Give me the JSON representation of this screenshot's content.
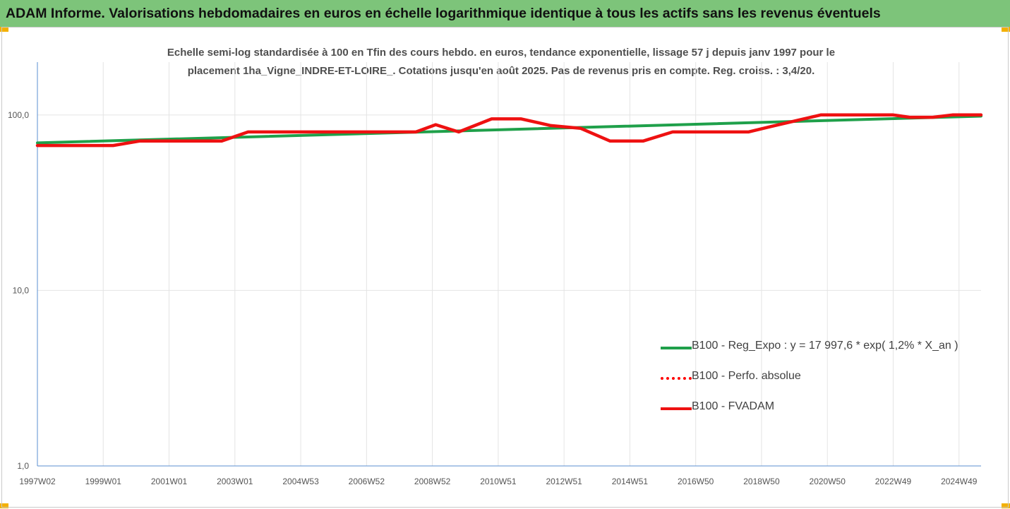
{
  "banner": {
    "title": "ADAM Informe. Valorisations hebdomadaires en euros en échelle logarithmique identique à tous les actifs sans les revenus éventuels",
    "background": "#7dc47a",
    "corner_color": "#f3b000"
  },
  "chart_data": {
    "type": "line",
    "title_lines": [
      "Echelle semi-log standardisée à 100 en Tfin des cours hebdo. en euros, tendance exponentielle, lissage 57 j depuis janv 1997 pour le",
      "placement 1ha_Vigne_INDRE-ET-LOIRE_. Cotations jusqu'en août 2025. Pas de revenus pris en compte. Reg. croiss. : 3,4/20."
    ],
    "y_scale": "log",
    "ylim": [
      1,
      200
    ],
    "y_ticks": [
      {
        "value": 1,
        "label": "1,0"
      },
      {
        "value": 10,
        "label": "10,0"
      },
      {
        "value": 100,
        "label": "100,0"
      }
    ],
    "xlim": [
      1997.0,
      2025.67
    ],
    "x_ticks": [
      {
        "value": 1997.0,
        "label": "1997W02"
      },
      {
        "value": 1999.0,
        "label": "1999W01"
      },
      {
        "value": 2001.0,
        "label": "2001W01"
      },
      {
        "value": 2003.0,
        "label": "2003W01"
      },
      {
        "value": 2005.0,
        "label": "2004W53"
      },
      {
        "value": 2007.0,
        "label": "2006W52"
      },
      {
        "value": 2009.0,
        "label": "2008W52"
      },
      {
        "value": 2011.0,
        "label": "2010W51"
      },
      {
        "value": 2013.0,
        "label": "2012W51"
      },
      {
        "value": 2015.0,
        "label": "2014W51"
      },
      {
        "value": 2017.0,
        "label": "2016W50"
      },
      {
        "value": 2019.0,
        "label": "2018W50"
      },
      {
        "value": 2021.0,
        "label": "2020W50"
      },
      {
        "value": 2023.0,
        "label": "2022W49"
      },
      {
        "value": 2025.0,
        "label": "2024W49"
      }
    ],
    "grid": "vertical",
    "legend_position": "bottom-right",
    "series": [
      {
        "name": "B100 - Reg_Expo : y = 17 997,6 * exp( 1,2% *  X_an )",
        "color": "#1fa04a",
        "style": "solid",
        "points": [
          [
            1997.0,
            69.3
          ],
          [
            2025.67,
            98.5
          ]
        ]
      },
      {
        "name": "B100 - Perfo. absolue",
        "color": "#ff0000",
        "style": "dotted",
        "points": []
      },
      {
        "name": "B100 - FVADAM",
        "color": "#ee1111",
        "style": "solid",
        "points": [
          [
            1997.0,
            67.0
          ],
          [
            1999.0,
            67.0
          ],
          [
            1999.3,
            67.0
          ],
          [
            2000.1,
            71.0
          ],
          [
            2002.6,
            71.0
          ],
          [
            2003.4,
            80.0
          ],
          [
            2008.5,
            80.0
          ],
          [
            2009.1,
            88.0
          ],
          [
            2009.8,
            80.0
          ],
          [
            2010.8,
            95.0
          ],
          [
            2011.7,
            95.0
          ],
          [
            2012.6,
            87.0
          ],
          [
            2013.5,
            84.0
          ],
          [
            2014.4,
            71.0
          ],
          [
            2015.4,
            71.0
          ],
          [
            2016.3,
            80.0
          ],
          [
            2018.6,
            80.0
          ],
          [
            2019.3,
            86.0
          ],
          [
            2020.8,
            100.0
          ],
          [
            2023.0,
            100.0
          ],
          [
            2023.5,
            97.0
          ],
          [
            2024.2,
            97.0
          ],
          [
            2024.8,
            100.0
          ],
          [
            2025.67,
            100.0
          ]
        ]
      }
    ]
  }
}
